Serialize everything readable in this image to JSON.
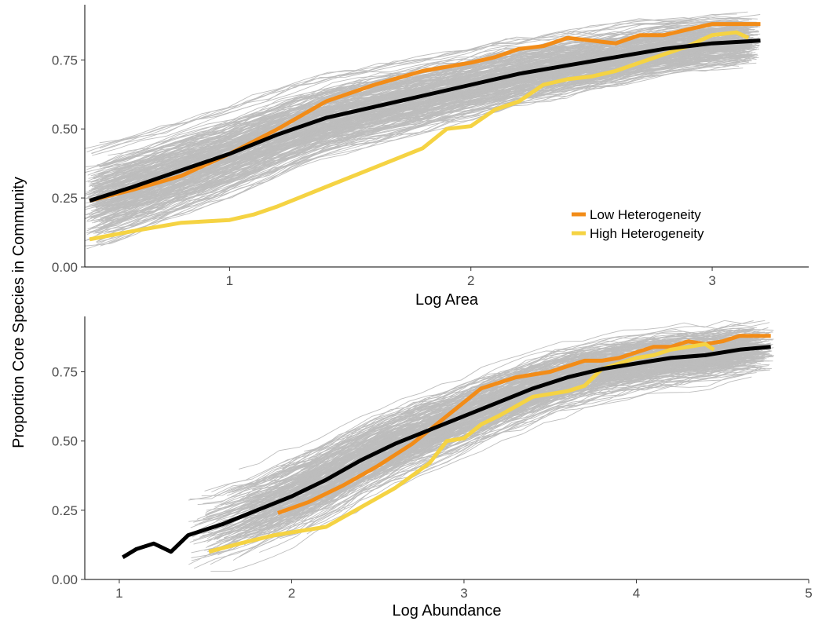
{
  "figure": {
    "shared_ylabel": "Proportion Core Species in Community"
  },
  "chart_data": [
    {
      "type": "line",
      "xlabel": "Log Area",
      "ylabel": "Proportion Core Species in Community",
      "xlim": [
        0.4,
        3.4
      ],
      "ylim": [
        0,
        0.95
      ],
      "xticks": [
        1,
        2,
        3
      ],
      "xtick_labels": [
        "1",
        "2",
        "3"
      ],
      "yticks": [
        0,
        0.25,
        0.5,
        0.75
      ],
      "ytick_labels": [
        "0.00",
        "0.25",
        "0.50",
        "0.75"
      ],
      "grid": false,
      "legend": {
        "placement": "bottom-right",
        "entries": [
          "Low Heterogeneity",
          "High Heterogeneity"
        ]
      },
      "background_lines": {
        "color": "#bdbdbd",
        "description_count": 250,
        "x_start_range": [
          0.4,
          0.5
        ],
        "x_end_range": [
          3.1,
          3.2
        ]
      },
      "series": [
        {
          "name": "Low Heterogeneity",
          "color": "#f28c18",
          "x": [
            0.42,
            0.6,
            0.8,
            1.0,
            1.2,
            1.4,
            1.6,
            1.8,
            2.0,
            2.1,
            2.2,
            2.3,
            2.4,
            2.5,
            2.6,
            2.7,
            2.8,
            2.9,
            3.0,
            3.1,
            3.2
          ],
          "y": [
            0.24,
            0.28,
            0.33,
            0.41,
            0.5,
            0.6,
            0.66,
            0.71,
            0.74,
            0.76,
            0.79,
            0.8,
            0.83,
            0.82,
            0.81,
            0.84,
            0.84,
            0.86,
            0.88,
            0.88,
            0.88
          ]
        },
        {
          "name": "High Heterogeneity",
          "color": "#f5d343",
          "x": [
            0.42,
            0.6,
            0.8,
            1.0,
            1.1,
            1.2,
            1.4,
            1.6,
            1.8,
            1.9,
            2.0,
            2.1,
            2.2,
            2.3,
            2.4,
            2.5,
            2.6,
            2.7,
            2.8,
            2.9,
            3.0,
            3.1,
            3.15
          ],
          "y": [
            0.1,
            0.13,
            0.16,
            0.17,
            0.19,
            0.22,
            0.29,
            0.36,
            0.43,
            0.5,
            0.51,
            0.57,
            0.6,
            0.66,
            0.68,
            0.69,
            0.71,
            0.74,
            0.77,
            0.8,
            0.84,
            0.85,
            0.83
          ]
        },
        {
          "color": "#000000",
          "x": [
            0.42,
            0.6,
            0.8,
            1.0,
            1.2,
            1.4,
            1.6,
            1.8,
            2.0,
            2.2,
            2.4,
            2.6,
            2.8,
            3.0,
            3.2
          ],
          "y": [
            0.24,
            0.29,
            0.35,
            0.41,
            0.48,
            0.54,
            0.58,
            0.62,
            0.66,
            0.7,
            0.73,
            0.76,
            0.79,
            0.81,
            0.82
          ]
        }
      ]
    },
    {
      "type": "line",
      "xlabel": "Log Abundance",
      "ylabel": "Proportion Core Species in Community",
      "xlim": [
        0.8,
        5.0
      ],
      "ylim": [
        0,
        0.95
      ],
      "xticks": [
        1,
        2,
        3,
        4,
        5
      ],
      "xtick_labels": [
        "1",
        "2",
        "3",
        "4",
        "5"
      ],
      "yticks": [
        0,
        0.25,
        0.5,
        0.75
      ],
      "ytick_labels": [
        "0.00",
        "0.25",
        "0.50",
        "0.75"
      ],
      "grid": false,
      "background_lines": {
        "color": "#bdbdbd",
        "description_count": 250,
        "x_start_range": [
          1.4,
          2.1
        ],
        "x_end_range": [
          4.6,
          4.8
        ]
      },
      "series": [
        {
          "name": "Low Heterogeneity",
          "color": "#f28c18",
          "x": [
            1.92,
            2.1,
            2.3,
            2.5,
            2.7,
            2.9,
            3.1,
            3.3,
            3.5,
            3.7,
            3.8,
            3.9,
            4.0,
            4.1,
            4.2,
            4.3,
            4.4,
            4.5,
            4.6,
            4.7,
            4.78
          ],
          "y": [
            0.24,
            0.28,
            0.34,
            0.41,
            0.49,
            0.59,
            0.69,
            0.73,
            0.75,
            0.79,
            0.79,
            0.8,
            0.82,
            0.84,
            0.84,
            0.86,
            0.85,
            0.86,
            0.88,
            0.88,
            0.88
          ]
        },
        {
          "name": "High Heterogeneity",
          "color": "#f5d343",
          "x": [
            1.52,
            1.7,
            1.9,
            2.1,
            2.2,
            2.4,
            2.6,
            2.8,
            2.9,
            3.0,
            3.1,
            3.2,
            3.4,
            3.6,
            3.7,
            3.8,
            3.9,
            4.0,
            4.1,
            4.2,
            4.3,
            4.4,
            4.45
          ],
          "y": [
            0.1,
            0.13,
            0.16,
            0.18,
            0.19,
            0.26,
            0.33,
            0.42,
            0.5,
            0.51,
            0.56,
            0.59,
            0.66,
            0.68,
            0.7,
            0.76,
            0.78,
            0.8,
            0.81,
            0.83,
            0.84,
            0.85,
            0.83
          ]
        },
        {
          "color": "#000000",
          "x": [
            1.02,
            1.1,
            1.2,
            1.3,
            1.4,
            1.5,
            1.6,
            1.8,
            2.0,
            2.2,
            2.4,
            2.6,
            2.8,
            3.0,
            3.2,
            3.4,
            3.6,
            3.8,
            4.0,
            4.2,
            4.4,
            4.6,
            4.78
          ],
          "y": [
            0.08,
            0.11,
            0.13,
            0.1,
            0.16,
            0.18,
            0.2,
            0.25,
            0.3,
            0.36,
            0.43,
            0.49,
            0.54,
            0.59,
            0.64,
            0.69,
            0.73,
            0.76,
            0.78,
            0.8,
            0.81,
            0.83,
            0.84
          ]
        }
      ]
    }
  ]
}
